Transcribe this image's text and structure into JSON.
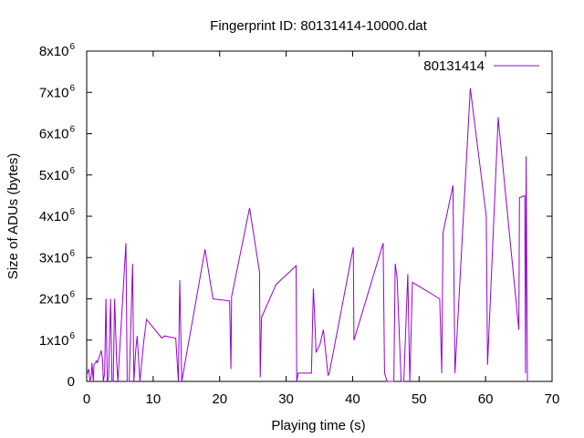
{
  "chart_data": {
    "type": "line",
    "title": "Fingerprint ID: 80131414-10000.dat",
    "xlabel": "Playing time (s)",
    "ylabel": "Size of ADUs (bytes)",
    "xlim": [
      0,
      70
    ],
    "ylim": [
      0,
      8000000
    ],
    "x_ticks": [
      {
        "value": 0,
        "label": "0"
      },
      {
        "value": 10,
        "label": "10"
      },
      {
        "value": 20,
        "label": "20"
      },
      {
        "value": 30,
        "label": "30"
      },
      {
        "value": 40,
        "label": "40"
      },
      {
        "value": 50,
        "label": "50"
      },
      {
        "value": 60,
        "label": "60"
      },
      {
        "value": 70,
        "label": "70"
      }
    ],
    "y_ticks": [
      {
        "value": 0,
        "base": "0",
        "exp": ""
      },
      {
        "value": 1000000,
        "base": "1x10",
        "exp": "6"
      },
      {
        "value": 2000000,
        "base": "2x10",
        "exp": "6"
      },
      {
        "value": 3000000,
        "base": "3x10",
        "exp": "6"
      },
      {
        "value": 4000000,
        "base": "4x10",
        "exp": "6"
      },
      {
        "value": 5000000,
        "base": "5x10",
        "exp": "6"
      },
      {
        "value": 6000000,
        "base": "6x10",
        "exp": "6"
      },
      {
        "value": 7000000,
        "base": "7x10",
        "exp": "6"
      },
      {
        "value": 8000000,
        "base": "8x10",
        "exp": "6"
      }
    ],
    "grid": false,
    "legend_position": "top-right",
    "series": [
      {
        "name": "80131414",
        "color": "#9400d3",
        "x": [
          0.0,
          0.3,
          0.5,
          0.7,
          0.8,
          1.0,
          1.1,
          1.3,
          1.5,
          1.6,
          2.2,
          2.4,
          2.5,
          2.7,
          2.9,
          3.1,
          3.3,
          3.6,
          3.8,
          4.0,
          4.2,
          4.5,
          4.7,
          5.9,
          6.1,
          6.4,
          6.9,
          7.1,
          7.4,
          7.6,
          8.0,
          8.6,
          9.0,
          11.3,
          11.7,
          13.4,
          13.8,
          14.0,
          14.3,
          17.8,
          19.0,
          21.5,
          21.7,
          21.8,
          24.5,
          26.0,
          26.1,
          26.3,
          28.5,
          31.5,
          31.6,
          31.8,
          33.8,
          34.1,
          34.2,
          34.5,
          35.1,
          35.6,
          36.3,
          36.5,
          40.1,
          40.2,
          44.6,
          44.8,
          45.2,
          46.2,
          46.4,
          46.7,
          47.3,
          47.7,
          48.3,
          48.6,
          49.0,
          53.1,
          53.4,
          53.6,
          55.1,
          55.4,
          57.7,
          60.1,
          60.3,
          61.9,
          62.0,
          65.0,
          65.1,
          65.9,
          66.0,
          66.1,
          66.3
        ],
        "y": [
          150000,
          300000,
          0,
          150000,
          450000,
          0,
          400000,
          450000,
          500000,
          450000,
          750000,
          500000,
          0,
          200000,
          2000000,
          0,
          100000,
          2000000,
          0,
          0,
          2000000,
          500000,
          0,
          3350000,
          0,
          0,
          2850000,
          0,
          800000,
          1100000,
          0,
          1000000,
          1500000,
          1050000,
          1100000,
          1050000,
          0,
          2450000,
          0,
          3200000,
          2000000,
          1950000,
          300000,
          2050000,
          4200000,
          2650000,
          100000,
          1550000,
          2350000,
          2800000,
          0,
          200000,
          200000,
          2250000,
          1900000,
          700000,
          900000,
          1250000,
          150000,
          200000,
          3250000,
          1000000,
          3350000,
          200000,
          0,
          0,
          2850000,
          2500000,
          0,
          0,
          2600000,
          0,
          2400000,
          2000000,
          200000,
          3600000,
          4750000,
          200000,
          7100000,
          4000000,
          400000,
          6400000,
          6200000,
          1250000,
          4450000,
          4500000,
          200000,
          5450000,
          0
        ]
      }
    ]
  }
}
